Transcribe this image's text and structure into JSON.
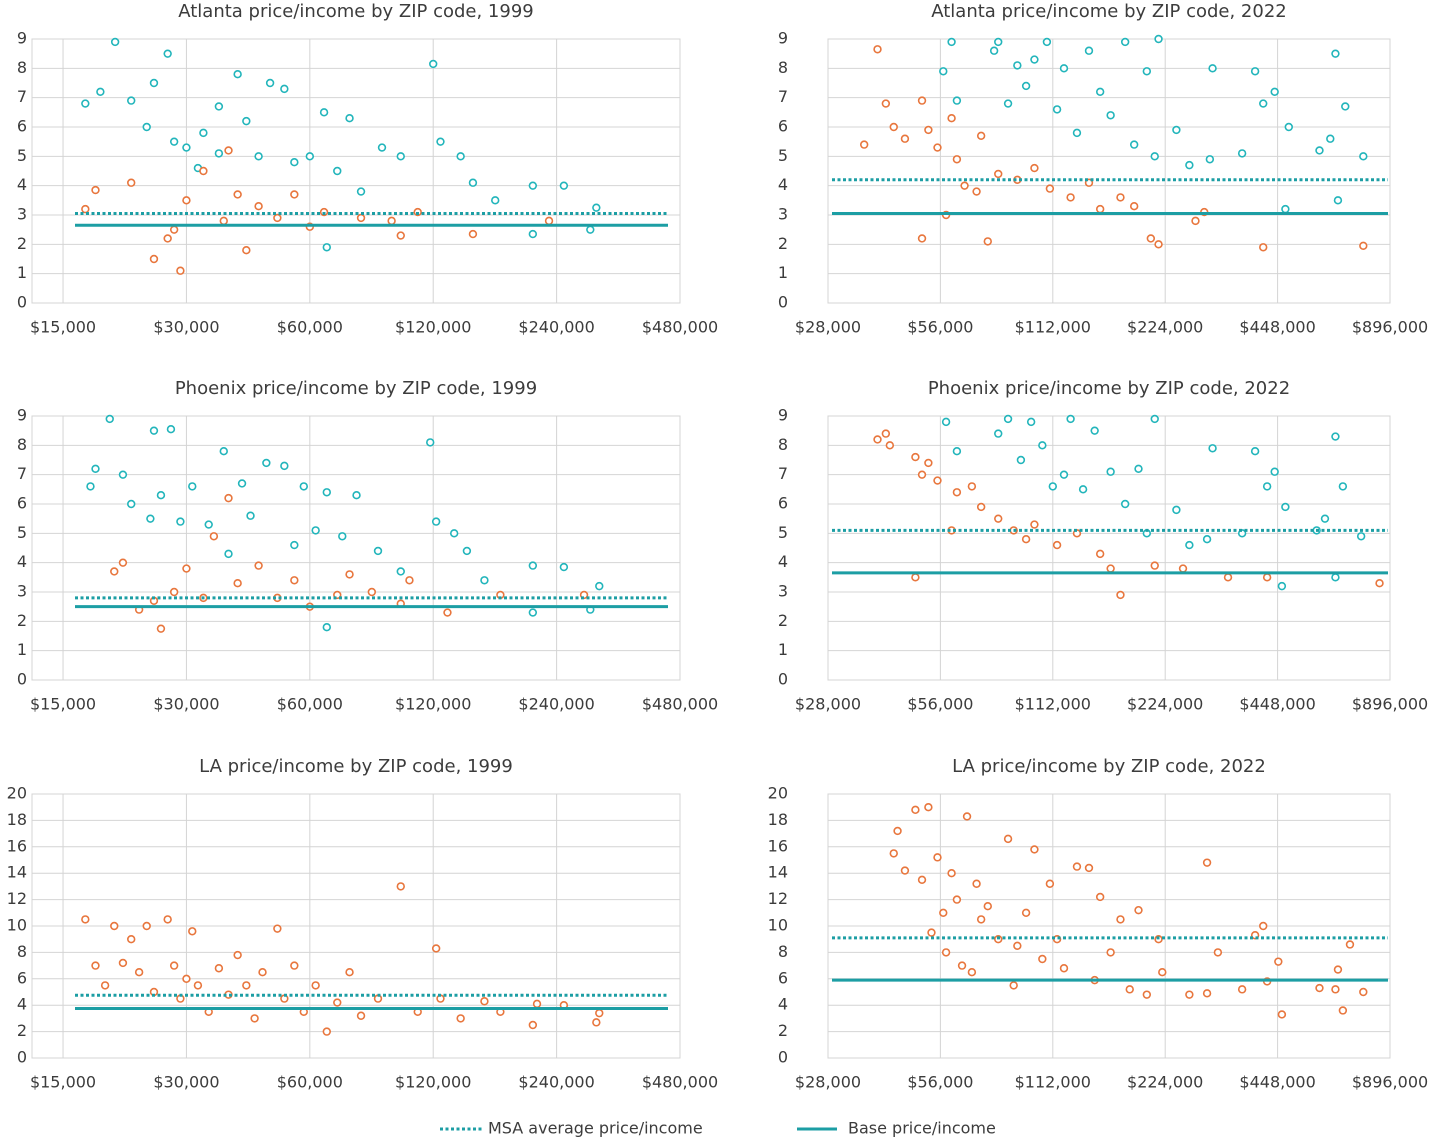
{
  "chart_data": [
    {
      "type": "scatter",
      "title": "Atlanta price/income by ZIP code, 1999",
      "xscale": "log",
      "grid": true,
      "xlim": [
        12600,
        480000
      ],
      "xticks": [
        {
          "value": 15000,
          "label": "$15,000"
        },
        {
          "value": 30000,
          "label": "$30,000"
        },
        {
          "value": 60000,
          "label": "$60,000"
        },
        {
          "value": 120000,
          "label": "$120,000"
        },
        {
          "value": 240000,
          "label": "$240,000"
        },
        {
          "value": 480000,
          "label": "$480,000"
        }
      ],
      "ylim": [
        0,
        9
      ],
      "yticks": [
        0,
        1,
        2,
        3,
        4,
        5,
        6,
        7,
        8,
        9
      ],
      "reference_lines": [
        3.05,
        2.65
      ],
      "series": [
        {
          "color": "#22b5bb",
          "x": [
            20100,
            18500,
            17000,
            22000,
            25000,
            27000,
            24000,
            28000,
            30000,
            33000,
            36000,
            40000,
            42000,
            45000,
            48000,
            52000,
            55000,
            60000,
            65000,
            70000,
            75000,
            80000,
            90000,
            100000,
            120000,
            125000,
            140000,
            150000,
            170000,
            210000,
            250000,
            300000,
            290000,
            210000,
            66000,
            36000,
            32000
          ],
          "values": [
            8.9,
            7.2,
            6.8,
            6.9,
            7.5,
            8.5,
            6.0,
            5.5,
            5.3,
            5.8,
            6.7,
            7.8,
            6.2,
            5.0,
            7.5,
            7.3,
            4.8,
            5.0,
            6.5,
            4.5,
            6.3,
            3.8,
            5.3,
            5.0,
            8.15,
            5.5,
            5.0,
            4.1,
            3.5,
            4.0,
            4.0,
            3.25,
            2.5,
            2.35,
            1.9,
            5.1,
            4.6
          ]
        },
        {
          "color": "#e8763d",
          "x": [
            17000,
            18000,
            22000,
            25000,
            27000,
            29000,
            28000,
            30000,
            33000,
            37000,
            38000,
            42000,
            45000,
            50000,
            55000,
            60000,
            65000,
            80000,
            95000,
            110000,
            100000,
            150000,
            230000,
            40000
          ],
          "values": [
            3.2,
            3.85,
            4.1,
            1.5,
            2.2,
            1.1,
            2.5,
            3.5,
            4.5,
            2.8,
            5.2,
            1.8,
            3.3,
            2.9,
            3.7,
            2.6,
            3.1,
            2.9,
            2.8,
            3.1,
            2.3,
            2.35,
            2.8,
            3.7
          ]
        }
      ]
    },
    {
      "type": "scatter",
      "title": "Atlanta price/income by ZIP code, 2022",
      "xscale": "log",
      "grid": true,
      "xlim": [
        28000,
        896000
      ],
      "xticks": [
        {
          "value": 28000,
          "label": "$28,000"
        },
        {
          "value": 56000,
          "label": "$56,000"
        },
        {
          "value": 112000,
          "label": "$112,000"
        },
        {
          "value": 224000,
          "label": "$224,000"
        },
        {
          "value": 448000,
          "label": "$448,000"
        },
        {
          "value": 896000,
          "label": "$896,000"
        }
      ],
      "ylim": [
        0,
        9
      ],
      "yticks": [
        0,
        1,
        2,
        3,
        4,
        5,
        6,
        7,
        8,
        9
      ],
      "reference_lines": [
        4.2,
        3.05
      ],
      "series": [
        {
          "color": "#22b5bb",
          "x": [
            60000,
            57000,
            62000,
            78000,
            80000,
            85000,
            90000,
            95000,
            100000,
            108000,
            115000,
            120000,
            130000,
            140000,
            150000,
            160000,
            175000,
            185000,
            200000,
            215000,
            210000,
            240000,
            260000,
            300000,
            295000,
            360000,
            390000,
            410000,
            440000,
            480000,
            470000,
            580000,
            620000,
            640000,
            680000,
            650000,
            760000
          ],
          "values": [
            8.9,
            7.9,
            6.9,
            8.6,
            8.9,
            6.8,
            8.1,
            7.4,
            8.3,
            8.9,
            6.6,
            8.0,
            5.8,
            8.6,
            7.2,
            6.4,
            8.9,
            5.4,
            7.9,
            9.0,
            5.0,
            5.9,
            4.7,
            8.0,
            4.9,
            5.1,
            7.9,
            6.8,
            7.2,
            6.0,
            3.2,
            5.2,
            5.6,
            8.5,
            6.7,
            3.5,
            5.0
          ]
        },
        {
          "color": "#e8763d",
          "x": [
            35000,
            38000,
            40000,
            42000,
            45000,
            50000,
            52000,
            55000,
            50000,
            58000,
            60000,
            62000,
            65000,
            70000,
            72000,
            75000,
            80000,
            90000,
            100000,
            110000,
            125000,
            140000,
            150000,
            170000,
            185000,
            205000,
            215000,
            270000,
            285000,
            410000,
            760000
          ],
          "values": [
            5.4,
            8.65,
            6.8,
            6.0,
            5.6,
            6.9,
            5.9,
            5.3,
            2.2,
            3.0,
            6.3,
            4.9,
            4.0,
            3.8,
            5.7,
            2.1,
            4.4,
            4.2,
            4.6,
            3.9,
            3.6,
            4.1,
            3.2,
            3.6,
            3.3,
            2.2,
            2.0,
            2.8,
            3.1,
            1.9,
            1.95
          ]
        }
      ]
    },
    {
      "type": "scatter",
      "title": "Phoenix price/income by ZIP code, 1999",
      "xscale": "log",
      "grid": true,
      "xlim": [
        12600,
        480000
      ],
      "xticks": [
        {
          "value": 15000,
          "label": "$15,000"
        },
        {
          "value": 30000,
          "label": "$30,000"
        },
        {
          "value": 60000,
          "label": "$60,000"
        },
        {
          "value": 120000,
          "label": "$120,000"
        },
        {
          "value": 240000,
          "label": "$240,000"
        },
        {
          "value": 480000,
          "label": "$480,000"
        }
      ],
      "ylim": [
        0,
        9
      ],
      "yticks": [
        0,
        1,
        2,
        3,
        4,
        5,
        6,
        7,
        8,
        9
      ],
      "reference_lines": [
        2.8,
        2.5
      ],
      "series": [
        {
          "color": "#22b5bb",
          "x": [
            19500,
            18000,
            17500,
            21000,
            22000,
            25000,
            27500,
            24500,
            26000,
            29000,
            31000,
            34000,
            37000,
            41000,
            43000,
            47000,
            52000,
            55000,
            58000,
            62000,
            66000,
            72000,
            78000,
            88000,
            100000,
            118000,
            122000,
            135000,
            145000,
            160000,
            210000,
            250000,
            305000,
            290000,
            210000,
            66000,
            38000
          ],
          "values": [
            8.9,
            7.2,
            6.6,
            7.0,
            6.0,
            8.5,
            8.55,
            5.5,
            6.3,
            5.4,
            6.6,
            5.3,
            7.8,
            6.7,
            5.6,
            7.4,
            7.3,
            4.6,
            6.6,
            5.1,
            6.4,
            4.9,
            6.3,
            4.4,
            3.7,
            8.1,
            5.4,
            5.0,
            4.4,
            3.4,
            3.9,
            3.85,
            3.2,
            2.4,
            2.3,
            1.8,
            4.3
          ]
        },
        {
          "color": "#e8763d",
          "x": [
            20000,
            21000,
            23000,
            26000,
            25000,
            28000,
            30000,
            33000,
            35000,
            38000,
            40000,
            45000,
            50000,
            55000,
            60000,
            70000,
            85000,
            100000,
            105000,
            130000,
            175000,
            280000,
            75000
          ],
          "values": [
            3.7,
            4.0,
            2.4,
            1.75,
            2.7,
            3.0,
            3.8,
            2.8,
            4.9,
            6.2,
            3.3,
            3.9,
            2.8,
            3.4,
            2.5,
            2.9,
            3.0,
            2.6,
            3.4,
            2.3,
            2.9,
            2.9,
            3.6
          ]
        }
      ]
    },
    {
      "type": "scatter",
      "title": "Phoenix price/income by ZIP code, 2022",
      "xscale": "log",
      "grid": true,
      "xlim": [
        28000,
        896000
      ],
      "xticks": [
        {
          "value": 28000,
          "label": "$28,000"
        },
        {
          "value": 56000,
          "label": "$56,000"
        },
        {
          "value": 112000,
          "label": "$112,000"
        },
        {
          "value": 224000,
          "label": "$224,000"
        },
        {
          "value": 448000,
          "label": "$448,000"
        },
        {
          "value": 896000,
          "label": "$896,000"
        }
      ],
      "ylim": [
        0,
        9
      ],
      "yticks": [
        0,
        1,
        2,
        3,
        4,
        5,
        6,
        7,
        8,
        9
      ],
      "reference_lines": [
        5.1,
        3.65
      ],
      "series": [
        {
          "color": "#22b5bb",
          "x": [
            58000,
            62000,
            80000,
            85000,
            92000,
            98000,
            105000,
            112000,
            120000,
            125000,
            135000,
            145000,
            160000,
            175000,
            190000,
            210000,
            200000,
            240000,
            260000,
            300000,
            290000,
            360000,
            390000,
            420000,
            440000,
            470000,
            460000,
            570000,
            600000,
            640000,
            670000,
            640000,
            750000
          ],
          "values": [
            8.8,
            7.8,
            8.4,
            8.9,
            7.5,
            8.8,
            8.0,
            6.6,
            7.0,
            8.9,
            6.5,
            8.5,
            7.1,
            6.0,
            7.2,
            8.9,
            5.0,
            5.8,
            4.6,
            7.9,
            4.8,
            5.0,
            7.8,
            6.6,
            7.1,
            5.9,
            3.2,
            5.1,
            5.5,
            8.3,
            6.6,
            3.5,
            4.9
          ]
        },
        {
          "color": "#e8763d",
          "x": [
            38000,
            40000,
            41000,
            48000,
            50000,
            52000,
            55000,
            48000,
            60000,
            62000,
            68000,
            72000,
            80000,
            88000,
            95000,
            100000,
            115000,
            130000,
            150000,
            170000,
            160000,
            210000,
            250000,
            420000,
            330000,
            840000
          ],
          "values": [
            8.2,
            8.4,
            8.0,
            7.6,
            7.0,
            7.4,
            6.8,
            3.5,
            5.1,
            6.4,
            6.6,
            5.9,
            5.5,
            5.1,
            4.8,
            5.3,
            4.6,
            5.0,
            4.3,
            2.9,
            3.8,
            3.9,
            3.8,
            3.5,
            3.5,
            3.3
          ]
        }
      ]
    },
    {
      "type": "scatter",
      "title": "LA price/income by ZIP code, 1999",
      "xscale": "log",
      "grid": true,
      "xlim": [
        12600,
        480000
      ],
      "xticks": [
        {
          "value": 15000,
          "label": "$15,000"
        },
        {
          "value": 30000,
          "label": "$30,000"
        },
        {
          "value": 60000,
          "label": "$60,000"
        },
        {
          "value": 120000,
          "label": "$120,000"
        },
        {
          "value": 240000,
          "label": "$240,000"
        },
        {
          "value": 480000,
          "label": "$480,000"
        }
      ],
      "ylim": [
        0,
        20
      ],
      "yticks": [
        0,
        2,
        4,
        6,
        8,
        10,
        12,
        14,
        16,
        18,
        20
      ],
      "reference_lines": [
        4.75,
        3.75
      ],
      "series": [
        {
          "color": "#e8763d",
          "x": [
            17000,
            18000,
            19000,
            20000,
            21000,
            22000,
            23000,
            24000,
            25000,
            27000,
            28000,
            29000,
            30000,
            31000,
            32000,
            34000,
            36000,
            38000,
            40000,
            42000,
            44000,
            46000,
            50000,
            52000,
            55000,
            58000,
            62000,
            66000,
            70000,
            75000,
            80000,
            88000,
            100000,
            110000,
            122000,
            125000,
            140000,
            160000,
            175000,
            210000,
            215000,
            250000,
            300000,
            305000
          ],
          "values": [
            10.5,
            7.0,
            5.5,
            10.0,
            7.2,
            9.0,
            6.5,
            10.0,
            5.0,
            10.5,
            7.0,
            4.5,
            6.0,
            9.6,
            5.5,
            3.5,
            6.8,
            4.8,
            7.8,
            5.5,
            3.0,
            6.5,
            9.8,
            4.5,
            7.0,
            3.5,
            5.5,
            2.0,
            4.2,
            6.5,
            3.2,
            4.5,
            13.0,
            3.5,
            8.3,
            4.5,
            3.0,
            4.3,
            3.5,
            2.5,
            4.1,
            4.0,
            2.7,
            3.4
          ]
        }
      ]
    },
    {
      "type": "scatter",
      "title": "LA price/income by ZIP code, 2022",
      "xscale": "log",
      "grid": true,
      "xlim": [
        28000,
        896000
      ],
      "xticks": [
        {
          "value": 28000,
          "label": "$28,000"
        },
        {
          "value": 56000,
          "label": "$56,000"
        },
        {
          "value": 112000,
          "label": "$112,000"
        },
        {
          "value": 224000,
          "label": "$224,000"
        },
        {
          "value": 448000,
          "label": "$448,000"
        },
        {
          "value": 896000,
          "label": "$896,000"
        }
      ],
      "ylim": [
        0,
        20
      ],
      "yticks": [
        0,
        2,
        4,
        6,
        8,
        10,
        12,
        14,
        16,
        18,
        20
      ],
      "reference_lines": [
        9.1,
        5.9
      ],
      "series": [
        {
          "color": "#e8763d",
          "x": [
            42000,
            43000,
            45000,
            48000,
            50000,
            52000,
            53000,
            55000,
            57000,
            58000,
            60000,
            62000,
            64000,
            66000,
            68000,
            70000,
            72000,
            75000,
            80000,
            85000,
            88000,
            90000,
            95000,
            100000,
            105000,
            110000,
            115000,
            120000,
            130000,
            140000,
            145000,
            150000,
            160000,
            170000,
            180000,
            190000,
            200000,
            215000,
            220000,
            260000,
            290000,
            290000,
            310000,
            360000,
            390000,
            410000,
            420000,
            450000,
            460000,
            580000,
            640000,
            650000,
            670000,
            700000,
            760000
          ],
          "values": [
            15.5,
            17.2,
            14.2,
            18.8,
            13.5,
            19.0,
            9.5,
            15.2,
            11.0,
            8.0,
            14.0,
            12.0,
            7.0,
            18.3,
            6.5,
            13.2,
            10.5,
            11.5,
            9.0,
            16.6,
            5.5,
            8.5,
            11.0,
            15.8,
            7.5,
            13.2,
            9.0,
            6.8,
            14.5,
            14.4,
            5.9,
            12.2,
            8.0,
            10.5,
            5.2,
            11.2,
            4.8,
            9.0,
            6.5,
            4.8,
            14.8,
            4.9,
            8.0,
            5.2,
            9.3,
            10.0,
            5.8,
            7.3,
            3.3,
            5.3,
            5.2,
            6.7,
            3.6,
            8.6,
            5.0
          ]
        }
      ]
    }
  ],
  "legend": [
    {
      "label": "MSA average price/income",
      "style": "dotted",
      "color": "#1c9ea4"
    },
    {
      "label": "Base price/income",
      "style": "solid",
      "color": "#1c9ea4"
    }
  ]
}
